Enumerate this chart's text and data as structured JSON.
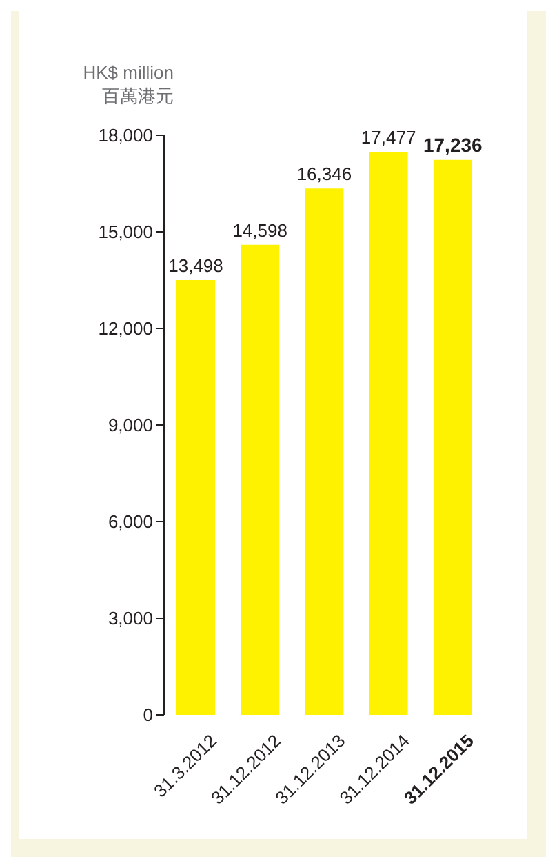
{
  "chart_data": {
    "type": "bar",
    "ylabel": "HK$ million\n百萬港元",
    "categories": [
      "31.3.2012",
      "31.12.2012",
      "31.12.2013",
      "31.12.2014",
      "31.12.2015"
    ],
    "values": [
      13498,
      14598,
      16346,
      17477,
      17236
    ],
    "color": "#fff200",
    "value_labels": [
      "13,498",
      "14,598",
      "16,346",
      "17,477",
      "17,236"
    ],
    "ylim": [
      0,
      18000
    ],
    "yticks": [
      0,
      {
        "value": 3000,
        "label": "3,000"
      },
      {
        "value": 6000,
        "label": "6,000"
      },
      {
        "value": 9000,
        "label": "9,000"
      },
      {
        "value": 12000,
        "label": "12,000"
      },
      {
        "value": 15000,
        "label": "15,000"
      },
      {
        "value": 18000,
        "label": "18,000"
      }
    ]
  }
}
